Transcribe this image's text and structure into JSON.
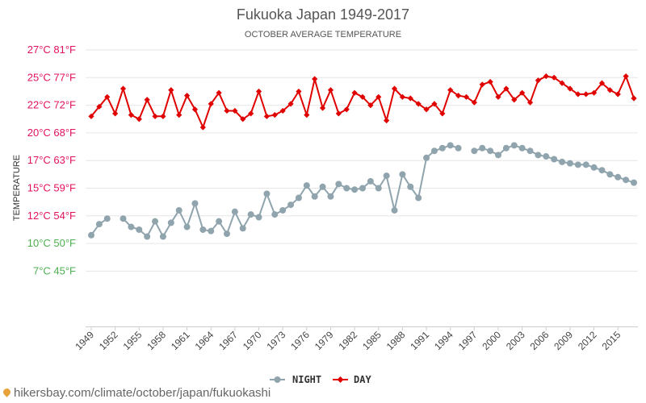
{
  "chart_data": {
    "type": "line",
    "title": "Fukuoka Japan 1949-2017",
    "subtitle": "OCTOBER AVERAGE TEMPERATURE",
    "ylabel": "TEMPERATURE",
    "ylim": [
      7,
      27
    ],
    "y_ticks": [
      {
        "c": 27,
        "label": "27°C 81°F",
        "color": "#e0115f"
      },
      {
        "c": 25,
        "label": "25°C 77°F",
        "color": "#e0115f"
      },
      {
        "c": 23,
        "label": "22°C 72°F",
        "color": "#e0115f"
      },
      {
        "c": 21,
        "label": "20°C 68°F",
        "color": "#e0115f"
      },
      {
        "c": 19,
        "label": "17°C 63°F",
        "color": "#e0115f"
      },
      {
        "c": 17,
        "label": "15°C 59°F",
        "color": "#e0115f"
      },
      {
        "c": 15,
        "label": "12°C 54°F",
        "color": "#e0115f"
      },
      {
        "c": 13,
        "label": "10°C 50°F",
        "color": "#4caf50"
      },
      {
        "c": 11,
        "label": "7°C 45°F",
        "color": "#4caf50"
      }
    ],
    "x_ticks": [
      "1949",
      "1952",
      "1955",
      "1958",
      "1961",
      "1964",
      "1967",
      "1970",
      "1973",
      "1976",
      "1979",
      "1982",
      "1985",
      "1988",
      "1991",
      "1994",
      "1997",
      "2000",
      "2003",
      "2006",
      "2009",
      "2012",
      "2015"
    ],
    "x": [
      1949,
      1950,
      1951,
      1952,
      1953,
      1954,
      1955,
      1956,
      1957,
      1958,
      1959,
      1960,
      1961,
      1962,
      1963,
      1964,
      1965,
      1966,
      1967,
      1968,
      1969,
      1970,
      1971,
      1972,
      1973,
      1974,
      1975,
      1976,
      1977,
      1978,
      1979,
      1980,
      1981,
      1982,
      1983,
      1984,
      1985,
      1986,
      1987,
      1988,
      1989,
      1990,
      1991,
      1992,
      1993,
      1994,
      1995,
      1996,
      1997,
      1998,
      1999,
      2000,
      2001,
      2002,
      2003,
      2004,
      2005,
      2006,
      2007,
      2008,
      2009,
      2010,
      2011,
      2012,
      2013,
      2014,
      2015,
      2016,
      2017
    ],
    "grid": true,
    "legend_position": "bottom",
    "series": [
      {
        "name": "NIGHT",
        "color": "#90a4ae",
        "marker": "circle",
        "values": [
          13.6,
          14.4,
          14.8,
          null,
          14.8,
          14.2,
          14.0,
          13.5,
          14.6,
          13.5,
          14.5,
          15.4,
          14.2,
          15.9,
          14.0,
          13.9,
          14.6,
          13.7,
          15.3,
          14.1,
          15.1,
          14.9,
          16.6,
          15.1,
          15.4,
          15.8,
          16.3,
          17.2,
          16.4,
          17.1,
          16.4,
          17.3,
          17.0,
          16.9,
          17.0,
          17.5,
          17.0,
          17.9,
          15.4,
          18.0,
          17.1,
          16.3,
          19.2,
          19.7,
          19.9,
          20.1,
          19.9,
          null,
          19.7,
          19.9,
          19.7,
          19.4,
          19.9,
          20.1,
          19.9,
          19.7,
          19.4,
          19.3,
          19.1,
          18.9,
          18.8,
          18.7,
          18.7,
          18.5,
          18.3,
          18.0,
          17.8,
          17.6,
          17.4
        ]
      },
      {
        "name": "DAY",
        "color": "#e00000",
        "marker": "diamond",
        "values": [
          22.2,
          22.9,
          23.6,
          22.4,
          24.2,
          22.3,
          22.0,
          23.4,
          22.2,
          22.2,
          24.1,
          22.3,
          23.7,
          22.7,
          21.4,
          23.1,
          23.9,
          22.6,
          22.6,
          22.0,
          22.4,
          24.0,
          22.2,
          22.3,
          22.6,
          23.1,
          24.0,
          22.3,
          24.9,
          22.8,
          24.1,
          22.4,
          22.7,
          23.9,
          23.6,
          23.0,
          23.6,
          21.9,
          24.2,
          23.6,
          23.5,
          23.1,
          22.7,
          23.1,
          22.4,
          24.1,
          23.7,
          23.6,
          23.2,
          24.5,
          24.7,
          23.6,
          24.2,
          23.4,
          23.9,
          23.2,
          24.8,
          25.1,
          25.0,
          24.6,
          24.2,
          23.8,
          23.8,
          23.9,
          24.6,
          24.1,
          23.8,
          25.1,
          23.5
        ]
      }
    ]
  },
  "footer": {
    "source": "hikersbay.com/climate/october/japan/fukuokashi"
  }
}
